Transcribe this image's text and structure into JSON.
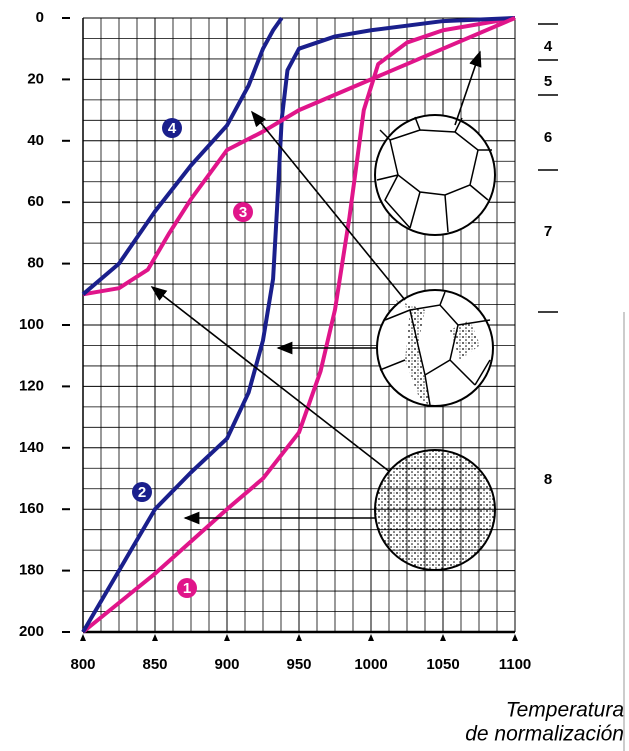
{
  "chart_data": {
    "type": "line",
    "x_label": [
      "Temperatura",
      "de normalización"
    ],
    "xlim": [
      800,
      1100
    ],
    "xticks": [
      800,
      850,
      900,
      950,
      1000,
      1050,
      1100
    ],
    "ylim": [
      0,
      200
    ],
    "yticks": [
      0,
      20,
      40,
      60,
      80,
      100,
      120,
      140,
      160,
      180,
      200
    ],
    "y_reversed": true,
    "grid": true,
    "series": [
      {
        "name": "1",
        "color": "#e0158a",
        "x": [
          800,
          850,
          900,
          925,
          950,
          965,
          975,
          985,
          995,
          1005,
          1025,
          1050,
          1100
        ],
        "values": [
          200,
          181,
          160,
          150,
          135,
          115,
          95,
          65,
          30,
          15,
          8,
          4,
          0
        ]
      },
      {
        "name": "2",
        "color": "#1a1f8c",
        "x": [
          800,
          825,
          850,
          875,
          900,
          915,
          925,
          932,
          935,
          938,
          942,
          950,
          975,
          1000,
          1050,
          1100
        ],
        "values": [
          200,
          180,
          160,
          148,
          137,
          122,
          105,
          85,
          60,
          33,
          17,
          10,
          6,
          4,
          1,
          0
        ]
      },
      {
        "name": "3",
        "color": "#e0158a",
        "x": [
          800,
          825,
          845,
          860,
          875,
          900,
          925,
          950,
          1000,
          1050,
          1100
        ],
        "values": [
          90,
          88,
          82,
          70,
          59,
          43,
          37,
          30,
          20,
          10,
          0
        ]
      },
      {
        "name": "4",
        "color": "#1a1f8c",
        "x": [
          800,
          825,
          850,
          875,
          900,
          915,
          925,
          932,
          938
        ],
        "values": [
          90,
          80,
          63,
          48,
          35,
          22,
          10,
          4,
          0
        ]
      }
    ],
    "zones": [
      "4",
      "5",
      "6",
      "7",
      "8"
    ]
  }
}
